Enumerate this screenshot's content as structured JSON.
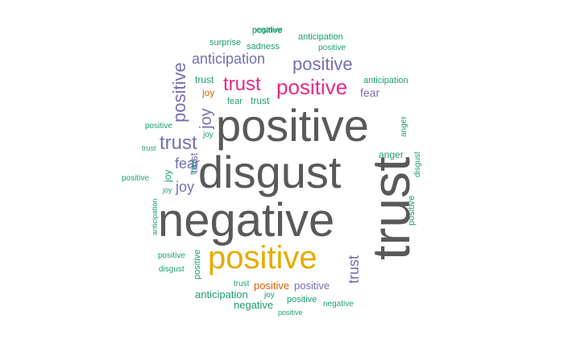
{
  "palette": {
    "dark_gray": "#595959",
    "gold": "#E6AB02",
    "magenta": "#E7298A",
    "purple": "#7570B3",
    "teal": "#1B9E77",
    "orange": "#D95F02"
  },
  "words": [
    {
      "text": "positive",
      "color": "#595959",
      "rotated": false
    },
    {
      "text": "disgust",
      "color": "#595959",
      "rotated": false
    },
    {
      "text": "negative",
      "color": "#595959",
      "rotated": false
    },
    {
      "text": "trust",
      "color": "#595959",
      "rotated": true
    },
    {
      "text": "positive",
      "color": "#E6AB02",
      "rotated": false
    },
    {
      "text": "positive",
      "color": "#E7298A",
      "rotated": false
    },
    {
      "text": "trust",
      "color": "#E7298A",
      "rotated": false
    },
    {
      "text": "positive",
      "color": "#7570B3",
      "rotated": false
    },
    {
      "text": "anticipation",
      "color": "#7570B3",
      "rotated": false
    },
    {
      "text": "positive",
      "color": "#7570B3",
      "rotated": true
    },
    {
      "text": "joy",
      "color": "#7570B3",
      "rotated": true
    },
    {
      "text": "trust",
      "color": "#7570B3",
      "rotated": false
    },
    {
      "text": "fear",
      "color": "#7570B3",
      "rotated": false
    },
    {
      "text": "joy",
      "color": "#7570B3",
      "rotated": false
    },
    {
      "text": "trust",
      "color": "#7570B3",
      "rotated": true
    },
    {
      "text": "fear",
      "color": "#7570B3",
      "rotated": false
    },
    {
      "text": "positive",
      "color": "#7570B3",
      "rotated": false
    },
    {
      "text": "negative",
      "color": "#1B9E77",
      "rotated": false
    },
    {
      "text": "anticipation",
      "color": "#1B9E77",
      "rotated": false
    },
    {
      "text": "positive",
      "color": "#1B9E77",
      "rotated": false
    },
    {
      "text": "surprise",
      "color": "#1B9E77",
      "rotated": false
    },
    {
      "text": "sadness",
      "color": "#1B9E77",
      "rotated": false
    },
    {
      "text": "trust",
      "color": "#1B9E77",
      "rotated": false
    },
    {
      "text": "joy",
      "color": "#D95F02",
      "rotated": false
    },
    {
      "text": "fear",
      "color": "#1B9E77",
      "rotated": false
    },
    {
      "text": "trust",
      "color": "#1B9E77",
      "rotated": false
    },
    {
      "text": "anticipation",
      "color": "#1B9E77",
      "rotated": false
    },
    {
      "text": "anger",
      "color": "#1B9E77",
      "rotated": true
    },
    {
      "text": "positive",
      "color": "#1B9E77",
      "rotated": false
    },
    {
      "text": "trust",
      "color": "#1B9E77",
      "rotated": false
    },
    {
      "text": "joy",
      "color": "#1B9E77",
      "rotated": false
    },
    {
      "text": "trust",
      "color": "#1B9E77",
      "rotated": true
    },
    {
      "text": "anger",
      "color": "#1B9E77",
      "rotated": false
    },
    {
      "text": "disgust",
      "color": "#1B9E77",
      "rotated": true
    },
    {
      "text": "positive",
      "color": "#1B9E77",
      "rotated": false
    },
    {
      "text": "joy",
      "color": "#1B9E77",
      "rotated": true
    },
    {
      "text": "joy",
      "color": "#1B9E77",
      "rotated": false
    },
    {
      "text": "positive",
      "color": "#1B9E77",
      "rotated": true
    },
    {
      "text": "anticipation",
      "color": "#1B9E77",
      "rotated": true
    },
    {
      "text": "positive",
      "color": "#1B9E77",
      "rotated": false
    },
    {
      "text": "disgust",
      "color": "#1B9E77",
      "rotated": false
    },
    {
      "text": "positive",
      "color": "#1B9E77",
      "rotated": true
    },
    {
      "text": "trust",
      "color": "#7570B3",
      "rotated": true
    },
    {
      "text": "trust",
      "color": "#1B9E77",
      "rotated": false
    },
    {
      "text": "positive",
      "color": "#D95F02",
      "rotated": false
    },
    {
      "text": "positive",
      "color": "#1B9E77",
      "rotated": false
    },
    {
      "text": "anticipation",
      "color": "#1B9E77",
      "rotated": false
    },
    {
      "text": "joy",
      "color": "#1B9E77",
      "rotated": false
    },
    {
      "text": "positive",
      "color": "#1B9E77",
      "rotated": false
    },
    {
      "text": "negative",
      "color": "#1B9E77",
      "rotated": false
    },
    {
      "text": "positive",
      "color": "#1B9E77",
      "rotated": false
    },
    {
      "text": "negative",
      "color": "#1B9E77",
      "rotated": false
    }
  ]
}
